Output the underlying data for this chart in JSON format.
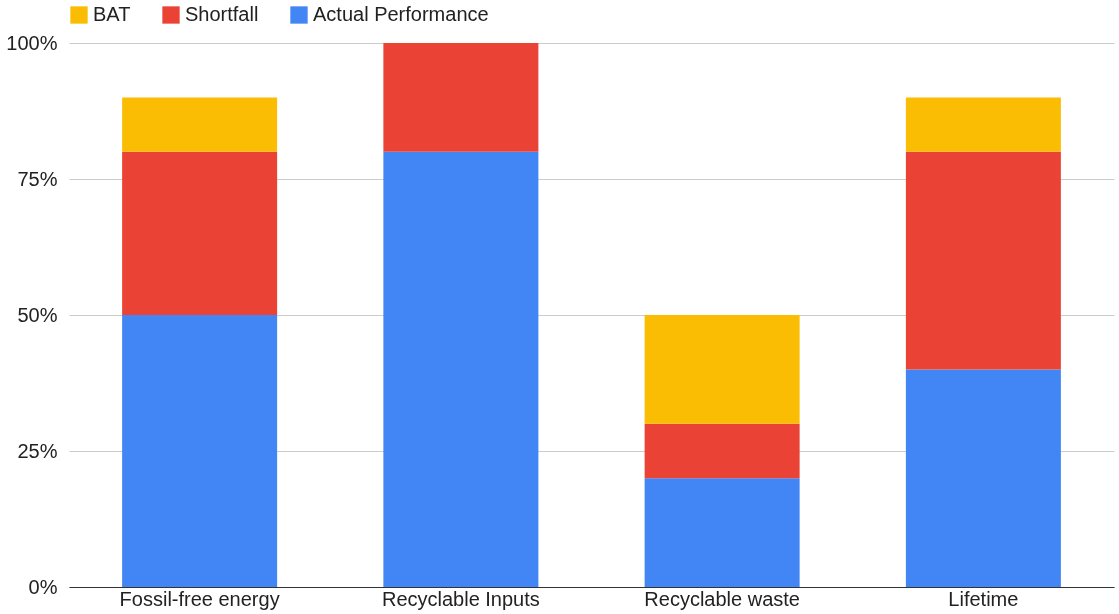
{
  "chart_data": {
    "type": "bar",
    "stacked": true,
    "categories": [
      "Fossil-free energy",
      "Recyclable Inputs",
      "Recyclable waste",
      "Lifetime"
    ],
    "series": [
      {
        "name": "Actual Performance",
        "color": "#4285f4",
        "values": [
          50,
          80,
          20,
          40
        ]
      },
      {
        "name": "Shortfall",
        "color": "#ea4335",
        "values": [
          30,
          20,
          10,
          40
        ]
      },
      {
        "name": "BAT",
        "color": "#fbbc04",
        "values": [
          10,
          null,
          20,
          10
        ]
      }
    ],
    "ylim": [
      0,
      100
    ],
    "yticks": [
      {
        "value": 0,
        "label": "0%"
      },
      {
        "value": 25,
        "label": "25%"
      },
      {
        "value": 50,
        "label": "50%"
      },
      {
        "value": 75,
        "label": "75%"
      },
      {
        "value": 100,
        "label": "100%"
      }
    ],
    "grid": "y",
    "legend": "top"
  }
}
